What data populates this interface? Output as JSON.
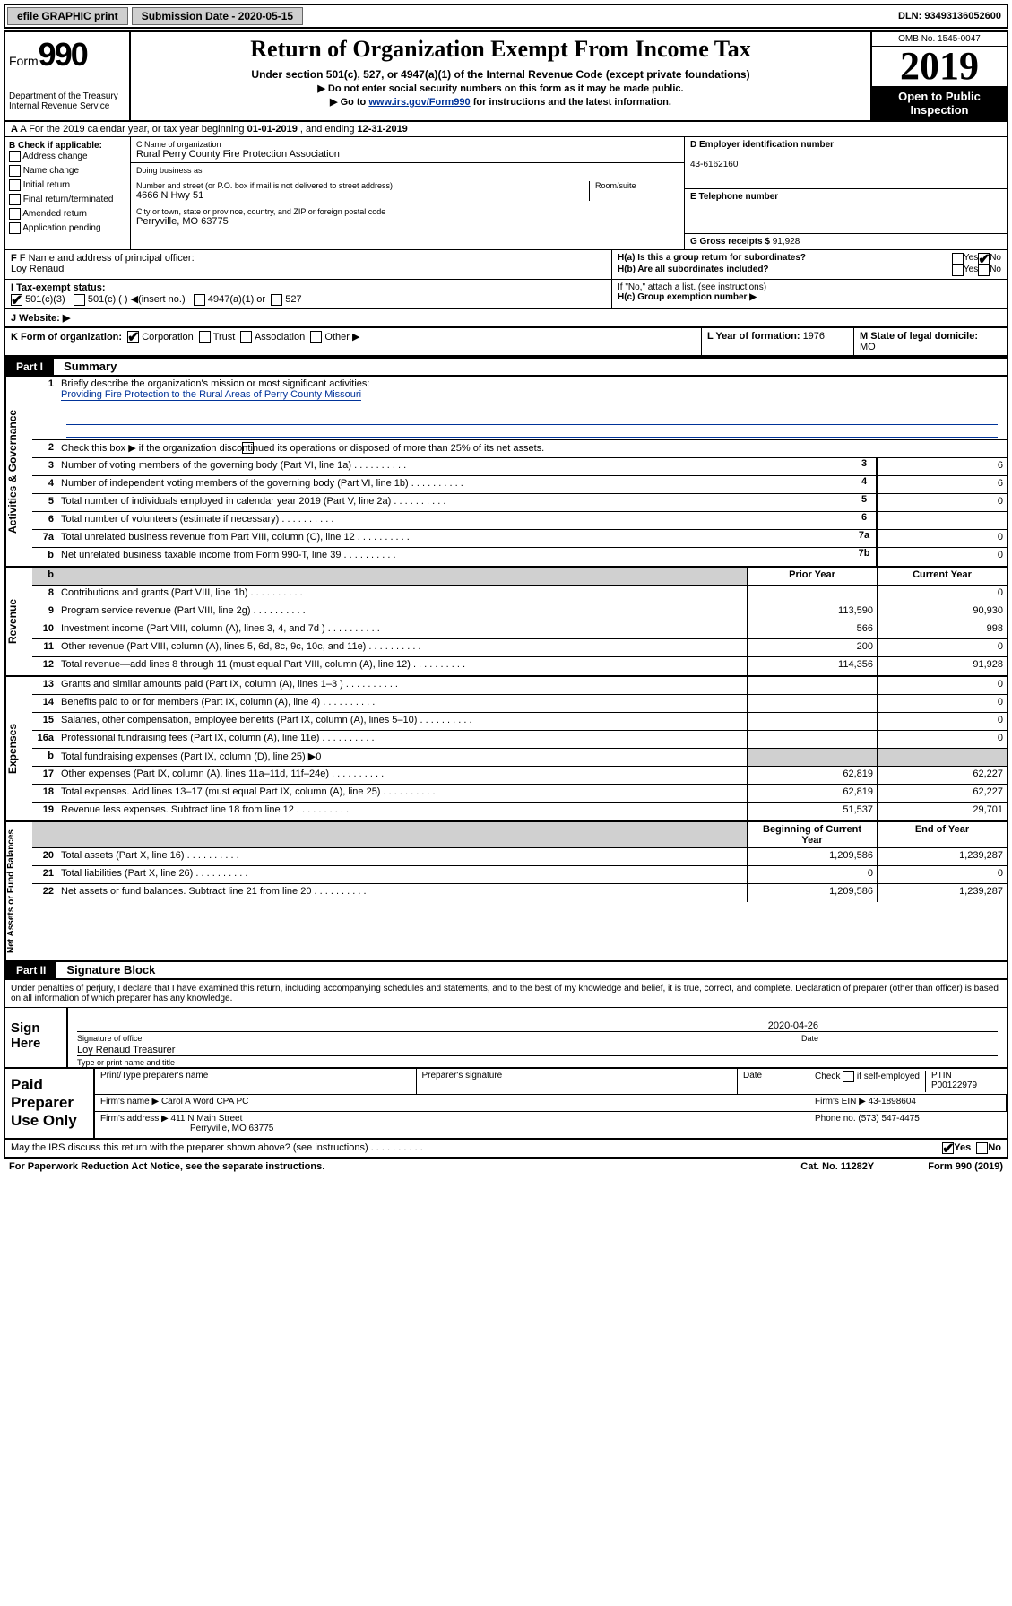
{
  "topbar": {
    "efile_label": "efile GRAPHIC print",
    "sub_date_label": "Submission Date - 2020-05-15",
    "dln": "DLN: 93493136052600"
  },
  "header": {
    "form_label": "Form",
    "form_num": "990",
    "dept": "Department of the Treasury\nInternal Revenue Service",
    "title": "Return of Organization Exempt From Income Tax",
    "sub1": "Under section 501(c), 527, or 4947(a)(1) of the Internal Revenue Code (except private foundations)",
    "sub2": "▶ Do not enter social security numbers on this form as it may be made public.",
    "sub3_pre": "▶ Go to ",
    "sub3_link": "www.irs.gov/Form990",
    "sub3_post": " for instructions and the latest information.",
    "omb": "OMB No. 1545-0047",
    "year": "2019",
    "open": "Open to Public Inspection"
  },
  "rowA": {
    "text": "A For the 2019 calendar year, or tax year beginning ",
    "begin": "01-01-2019",
    "mid": " , and ending ",
    "end": "12-31-2019"
  },
  "colB": {
    "label": "B Check if applicable:",
    "items": [
      "Address change",
      "Name change",
      "Initial return",
      "Final return/terminated",
      "Amended return",
      "Application pending"
    ]
  },
  "colC": {
    "name_label": "C Name of organization",
    "name": "Rural Perry County Fire Protection Association",
    "dba_label": "Doing business as",
    "addr_label": "Number and street (or P.O. box if mail is not delivered to street address)",
    "room_label": "Room/suite",
    "addr": "4666 N Hwy 51",
    "city_label": "City or town, state or province, country, and ZIP or foreign postal code",
    "city": "Perryville, MO  63775"
  },
  "colD": {
    "label": "D Employer identification number",
    "val": "43-6162160"
  },
  "colE": {
    "label": "E Telephone number"
  },
  "colG": {
    "label": "G Gross receipts $ ",
    "val": "91,928"
  },
  "rowF": {
    "label": "F Name and address of principal officer:",
    "name": "Loy Renaud"
  },
  "rowH": {
    "a": "H(a)  Is this a group return for subordinates?",
    "b": "H(b)  Are all subordinates included?",
    "note": "If \"No,\" attach a list. (see instructions)",
    "c": "H(c)  Group exemption number ▶",
    "yes": "Yes",
    "no": "No"
  },
  "rowI": {
    "label": "I   Tax-exempt status:",
    "c3": "501(c)(3)",
    "c": "501(c) ( ) ◀(insert no.)",
    "a1": "4947(a)(1) or",
    "527": "527"
  },
  "rowJ": {
    "label": "J   Website: ▶"
  },
  "rowK": {
    "label": "K Form of organization:",
    "corp": "Corporation",
    "trust": "Trust",
    "assoc": "Association",
    "other": "Other ▶"
  },
  "rowL": {
    "label": "L Year of formation: ",
    "val": "1976"
  },
  "rowM": {
    "label": "M State of legal domicile:",
    "val": "MO"
  },
  "part1": {
    "tab": "Part I",
    "title": "Summary"
  },
  "governance": {
    "tab": "Activities & Governance",
    "q1": "Briefly describe the organization's mission or most significant activities:",
    "a1": "Providing Fire Protection to the Rural Areas of Perry County Missouri",
    "q2": "Check this box ▶       if the organization discontinued its operations or disposed of more than 25% of its net assets.",
    "rows": [
      {
        "n": "3",
        "d": "Number of voting members of the governing body (Part VI, line 1a)",
        "c": "3",
        "v": "6"
      },
      {
        "n": "4",
        "d": "Number of independent voting members of the governing body (Part VI, line 1b)",
        "c": "4",
        "v": "6"
      },
      {
        "n": "5",
        "d": "Total number of individuals employed in calendar year 2019 (Part V, line 2a)",
        "c": "5",
        "v": "0"
      },
      {
        "n": "6",
        "d": "Total number of volunteers (estimate if necessary)",
        "c": "6",
        "v": ""
      },
      {
        "n": "7a",
        "d": "Total unrelated business revenue from Part VIII, column (C), line 12",
        "c": "7a",
        "v": "0"
      },
      {
        "n": "b",
        "d": "Net unrelated business taxable income from Form 990-T, line 39",
        "c": "7b",
        "v": "0"
      }
    ]
  },
  "revenue": {
    "tab": "Revenue",
    "hdr_prior": "Prior Year",
    "hdr_curr": "Current Year",
    "rows": [
      {
        "n": "8",
        "d": "Contributions and grants (Part VIII, line 1h)",
        "p": "",
        "c": "0"
      },
      {
        "n": "9",
        "d": "Program service revenue (Part VIII, line 2g)",
        "p": "113,590",
        "c": "90,930"
      },
      {
        "n": "10",
        "d": "Investment income (Part VIII, column (A), lines 3, 4, and 7d )",
        "p": "566",
        "c": "998"
      },
      {
        "n": "11",
        "d": "Other revenue (Part VIII, column (A), lines 5, 6d, 8c, 9c, 10c, and 11e)",
        "p": "200",
        "c": "0"
      },
      {
        "n": "12",
        "d": "Total revenue—add lines 8 through 11 (must equal Part VIII, column (A), line 12)",
        "p": "114,356",
        "c": "91,928"
      }
    ]
  },
  "expenses": {
    "tab": "Expenses",
    "rows": [
      {
        "n": "13",
        "d": "Grants and similar amounts paid (Part IX, column (A), lines 1–3 )",
        "p": "",
        "c": "0"
      },
      {
        "n": "14",
        "d": "Benefits paid to or for members (Part IX, column (A), line 4)",
        "p": "",
        "c": "0"
      },
      {
        "n": "15",
        "d": "Salaries, other compensation, employee benefits (Part IX, column (A), lines 5–10)",
        "p": "",
        "c": "0"
      },
      {
        "n": "16a",
        "d": "Professional fundraising fees (Part IX, column (A), line 11e)",
        "p": "",
        "c": "0"
      },
      {
        "n": "b",
        "d": "Total fundraising expenses (Part IX, column (D), line 25) ▶0",
        "p": "gray",
        "c": "gray"
      },
      {
        "n": "17",
        "d": "Other expenses (Part IX, column (A), lines 11a–11d, 11f–24e)",
        "p": "62,819",
        "c": "62,227"
      },
      {
        "n": "18",
        "d": "Total expenses. Add lines 13–17 (must equal Part IX, column (A), line 25)",
        "p": "62,819",
        "c": "62,227"
      },
      {
        "n": "19",
        "d": "Revenue less expenses. Subtract line 18 from line 12",
        "p": "51,537",
        "c": "29,701"
      }
    ]
  },
  "netassets": {
    "tab": "Net Assets or Fund Balances",
    "hdr_begin": "Beginning of Current Year",
    "hdr_end": "End of Year",
    "rows": [
      {
        "n": "20",
        "d": "Total assets (Part X, line 16)",
        "p": "1,209,586",
        "c": "1,239,287"
      },
      {
        "n": "21",
        "d": "Total liabilities (Part X, line 26)",
        "p": "0",
        "c": "0"
      },
      {
        "n": "22",
        "d": "Net assets or fund balances. Subtract line 21 from line 20",
        "p": "1,209,586",
        "c": "1,239,287"
      }
    ]
  },
  "part2": {
    "tab": "Part II",
    "title": "Signature Block"
  },
  "perjury": "Under penalties of perjury, I declare that I have examined this return, including accompanying schedules and statements, and to the best of my knowledge and belief, it is true, correct, and complete. Declaration of preparer (other than officer) is based on all information of which preparer has any knowledge.",
  "sign": {
    "here": "Sign Here",
    "sig_label": "Signature of officer",
    "date": "2020-04-26",
    "date_label": "Date",
    "name": "Loy Renaud  Treasurer",
    "name_label": "Type or print name and title"
  },
  "paid": {
    "left": "Paid Preparer Use Only",
    "h1": "Print/Type preparer's name",
    "h2": "Preparer's signature",
    "h3": "Date",
    "h4a": "Check",
    "h4b": "if self-employed",
    "ptin_label": "PTIN",
    "ptin": "P00122979",
    "firm_label": "Firm's name  ▶ ",
    "firm": "Carol A Word CPA PC",
    "ein_label": "Firm's EIN ▶ ",
    "ein": "43-1898604",
    "addr_label": "Firm's address ▶ ",
    "addr1": "411 N Main Street",
    "addr2": "Perryville, MO  63775",
    "phone_label": "Phone no. ",
    "phone": "(573) 547-4475"
  },
  "footer": {
    "q": "May the IRS discuss this return with the preparer shown above? (see instructions)",
    "yes": "Yes",
    "no": "No",
    "paperwork": "For Paperwork Reduction Act Notice, see the separate instructions.",
    "cat": "Cat. No. 11282Y",
    "form": "Form 990 (2019)"
  }
}
